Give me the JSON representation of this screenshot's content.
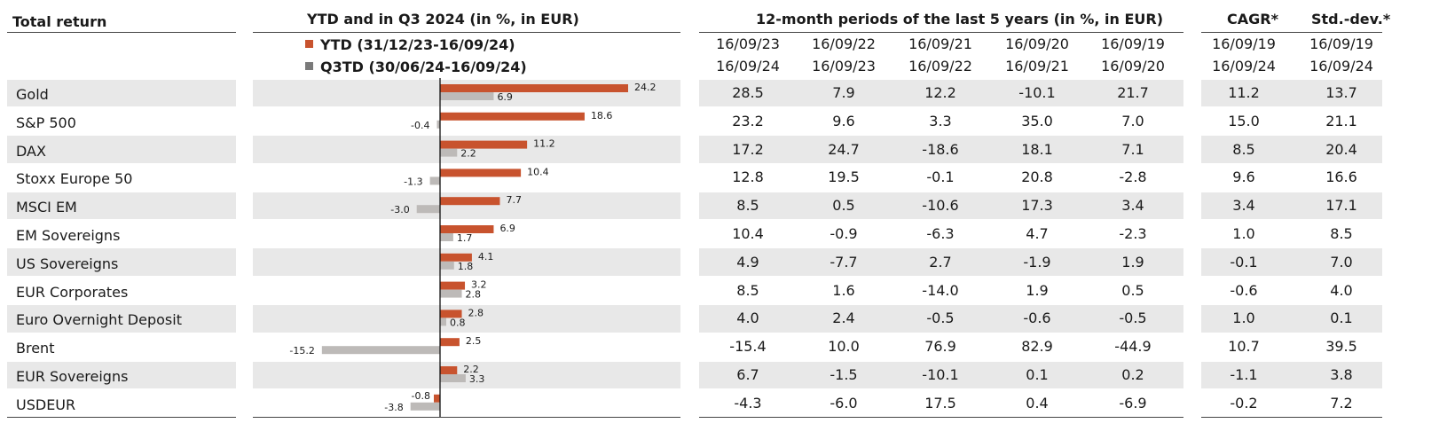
{
  "headers": {
    "total_return": "Total return",
    "ytd_q3": "YTD and in Q3 2024 (in %, in EUR)",
    "periods": "12-month periods of the last 5 years (in %, in EUR)",
    "cagr": "CAGR*",
    "stddev": "Std.-dev.*"
  },
  "legend": {
    "ytd": "YTD (31/12/23-16/09/24)",
    "q3td": "Q3TD (30/06/24-16/09/24)"
  },
  "colors": {
    "ytd": "#c8532e",
    "q3td": "#bdbab8",
    "row_shade": "#e8e8e8",
    "rule": "#444444"
  },
  "period_cols": [
    {
      "start": "16/09/23",
      "end": "16/09/24"
    },
    {
      "start": "16/09/22",
      "end": "16/09/23"
    },
    {
      "start": "16/09/21",
      "end": "16/09/22"
    },
    {
      "start": "16/09/20",
      "end": "16/09/21"
    },
    {
      "start": "16/09/19",
      "end": "16/09/20"
    }
  ],
  "cagr_dates": {
    "start": "16/09/19",
    "end": "16/09/24"
  },
  "stddev_dates": {
    "start": "16/09/19",
    "end": "16/09/24"
  },
  "rows": [
    {
      "name": "Gold",
      "periods": [
        "28.5",
        "7.9",
        "12.2",
        "-10.1",
        "21.7"
      ],
      "cagr": "11.2",
      "std": "13.7"
    },
    {
      "name": "S&P 500",
      "periods": [
        "23.2",
        "9.6",
        "3.3",
        "35.0",
        "7.0"
      ],
      "cagr": "15.0",
      "std": "21.1"
    },
    {
      "name": "DAX",
      "periods": [
        "17.2",
        "24.7",
        "-18.6",
        "18.1",
        "7.1"
      ],
      "cagr": "8.5",
      "std": "20.4"
    },
    {
      "name": "Stoxx Europe 50",
      "periods": [
        "12.8",
        "19.5",
        "-0.1",
        "20.8",
        "-2.8"
      ],
      "cagr": "9.6",
      "std": "16.6"
    },
    {
      "name": "MSCI EM",
      "periods": [
        "8.5",
        "0.5",
        "-10.6",
        "17.3",
        "3.4"
      ],
      "cagr": "3.4",
      "std": "17.1"
    },
    {
      "name": "EM Sovereigns",
      "periods": [
        "10.4",
        "-0.9",
        "-6.3",
        "4.7",
        "-2.3"
      ],
      "cagr": "1.0",
      "std": "8.5"
    },
    {
      "name": "US Sovereigns",
      "periods": [
        "4.9",
        "-7.7",
        "2.7",
        "-1.9",
        "1.9"
      ],
      "cagr": "-0.1",
      "std": "7.0"
    },
    {
      "name": "EUR Corporates",
      "periods": [
        "8.5",
        "1.6",
        "-14.0",
        "1.9",
        "0.5"
      ],
      "cagr": "-0.6",
      "std": "4.0"
    },
    {
      "name": "Euro Overnight Deposit",
      "periods": [
        "4.0",
        "2.4",
        "-0.5",
        "-0.6",
        "-0.5"
      ],
      "cagr": "1.0",
      "std": "0.1"
    },
    {
      "name": "Brent",
      "periods": [
        "-15.4",
        "10.0",
        "76.9",
        "82.9",
        "-44.9"
      ],
      "cagr": "10.7",
      "std": "39.5"
    },
    {
      "name": "EUR Sovereigns",
      "periods": [
        "6.7",
        "-1.5",
        "-10.1",
        "0.1",
        "0.2"
      ],
      "cagr": "-1.1",
      "std": "3.8"
    },
    {
      "name": "USDEUR",
      "periods": [
        "-4.3",
        "-6.0",
        "17.5",
        "0.4",
        "-6.9"
      ],
      "cagr": "-0.2",
      "std": "7.2"
    }
  ],
  "chart_data": {
    "type": "bar",
    "orientation": "horizontal",
    "title": "YTD and in Q3 2024 (in %, in EUR)",
    "categories": [
      "Gold",
      "S&P 500",
      "DAX",
      "Stoxx Europe 50",
      "MSCI EM",
      "EM Sovereigns",
      "US Sovereigns",
      "EUR Corporates",
      "Euro Overnight Deposit",
      "Brent",
      "EUR Sovereigns",
      "USDEUR"
    ],
    "series": [
      {
        "name": "YTD (31/12/23-16/09/24)",
        "values": [
          24.2,
          18.6,
          11.2,
          10.4,
          7.7,
          6.9,
          4.1,
          3.2,
          2.8,
          2.5,
          2.2,
          -0.8
        ]
      },
      {
        "name": "Q3TD (30/06/24-16/09/24)",
        "values": [
          6.9,
          -0.4,
          2.2,
          -1.3,
          -3.0,
          1.7,
          1.8,
          2.8,
          0.8,
          -15.2,
          3.3,
          -3.8
        ]
      }
    ],
    "xlim": [
      -16,
      24.2
    ],
    "legend": "top-left"
  }
}
